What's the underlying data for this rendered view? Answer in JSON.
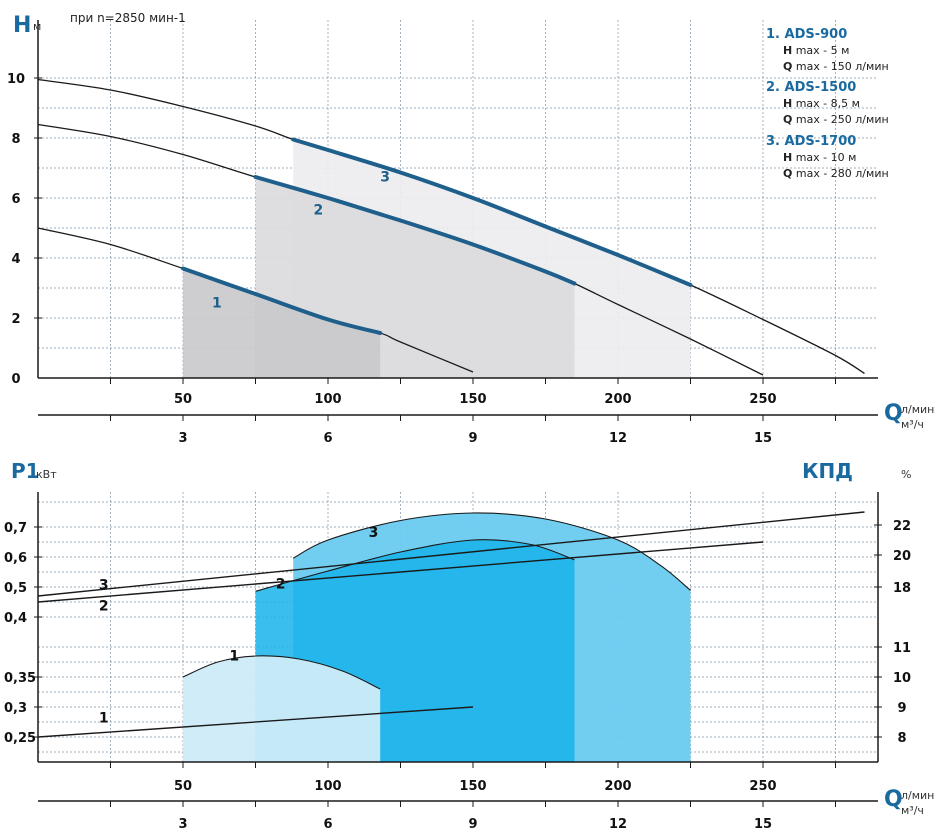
{
  "chart_data": [
    {
      "type": "line",
      "ylabel": "H",
      "yunit": "м",
      "xlabel": "Q",
      "xunit_top": "л/мин",
      "xunit_bottom": "м³/ч",
      "note": "при n=2850 мин-1",
      "xlim": [
        0,
        290
      ],
      "ylim": [
        0,
        10.4
      ],
      "y_ticks": [
        "0",
        "2",
        "4",
        "6",
        "8",
        "10"
      ],
      "x_ticks_lmin": [
        "50",
        "100",
        "150",
        "200",
        "250"
      ],
      "x_ticks_m3h": [
        "3",
        "6",
        "9",
        "12",
        "15"
      ],
      "grid": true,
      "series": [
        {
          "name": "1",
          "points": [
            [
              0,
              5.0
            ],
            [
              25,
              4.45
            ],
            [
              50,
              3.65
            ],
            [
              75,
              2.8
            ],
            [
              100,
              1.95
            ],
            [
              118,
              1.5
            ],
            [
              125,
              1.2
            ],
            [
              150,
              0.2
            ]
          ],
          "op_range": [
            50,
            118
          ]
        },
        {
          "name": "2",
          "points": [
            [
              0,
              8.45
            ],
            [
              25,
              8.05
            ],
            [
              50,
              7.45
            ],
            [
              75,
              6.7
            ],
            [
              100,
              6.0
            ],
            [
              125,
              5.25
            ],
            [
              150,
              4.45
            ],
            [
              175,
              3.55
            ],
            [
              185,
              3.15
            ],
            [
              200,
              2.45
            ],
            [
              225,
              1.3
            ],
            [
              250,
              0.1
            ]
          ],
          "op_range": [
            75,
            185
          ]
        },
        {
          "name": "3",
          "points": [
            [
              0,
              9.95
            ],
            [
              25,
              9.6
            ],
            [
              50,
              9.05
            ],
            [
              75,
              8.4
            ],
            [
              88,
              7.95
            ],
            [
              100,
              7.6
            ],
            [
              125,
              6.85
            ],
            [
              150,
              6.0
            ],
            [
              175,
              5.05
            ],
            [
              200,
              4.1
            ],
            [
              225,
              3.1
            ],
            [
              250,
              1.95
            ],
            [
              275,
              0.75
            ],
            [
              285,
              0.15
            ]
          ],
          "op_range": [
            88,
            225
          ]
        }
      ],
      "legend": [
        {
          "title": "1. ADS-900",
          "h_label": "H",
          "h_text": "max - 5 м",
          "q_label": "Q",
          "q_text": "max - 150 л/мин"
        },
        {
          "title": "2. ADS-1500",
          "h_label": "H",
          "h_text": "max - 8,5 м",
          "q_label": "Q",
          "q_text": "max - 250 л/мин"
        },
        {
          "title": "3. ADS-1700",
          "h_label": "H",
          "h_text": "max - 10 м",
          "q_label": "Q",
          "q_text": "max - 280 л/мин"
        }
      ],
      "colors": {
        "highlight": "#1f5f8b",
        "line": "#1a1a1a",
        "axis_title": "#1a6aa0"
      }
    },
    {
      "type": "line",
      "ylabel": "P1",
      "yunit": "кВт",
      "y2label": "КПД",
      "y2unit": "%",
      "xlabel": "Q",
      "xunit_top": "л/мин",
      "xunit_bottom": "м³/ч",
      "xlim": [
        0,
        290
      ],
      "y_ticks": [
        "0,25",
        "0,3",
        "0,35",
        "0,4",
        "0,5",
        "0,6",
        "0,7"
      ],
      "y2_ticks": [
        "8",
        "9",
        "10",
        "11",
        "18",
        "20",
        "22"
      ],
      "x_ticks_lmin": [
        "50",
        "100",
        "150",
        "200",
        "250"
      ],
      "x_ticks_m3h": [
        "3",
        "6",
        "9",
        "12",
        "15"
      ],
      "grid": true,
      "power_series": [
        {
          "name": "1",
          "points": [
            [
              0,
              0.25
            ],
            [
              150,
              0.3
            ]
          ]
        },
        {
          "name": "2",
          "points": [
            [
              0,
              0.45
            ],
            [
              250,
              0.65
            ]
          ]
        },
        {
          "name": "3",
          "points": [
            [
              0,
              0.47
            ],
            [
              285,
              0.75
            ]
          ]
        }
      ],
      "efficiency_series": [
        {
          "name": "1",
          "points": [
            [
              50,
              10.0
            ],
            [
              62,
              10.5
            ],
            [
              75,
              10.7
            ],
            [
              90,
              10.6
            ],
            [
              105,
              10.2
            ],
            [
              118,
              9.6
            ]
          ]
        },
        {
          "name": "2",
          "points": [
            [
              75,
              17.5
            ],
            [
              100,
              19.0
            ],
            [
              125,
              20.2
            ],
            [
              150,
              21.0
            ],
            [
              170,
              20.7
            ],
            [
              185,
              19.7
            ]
          ]
        },
        {
          "name": "3",
          "points": [
            [
              88,
              19.8
            ],
            [
              100,
              21.0
            ],
            [
              125,
              22.3
            ],
            [
              150,
              22.8
            ],
            [
              175,
              22.4
            ],
            [
              200,
              21.0
            ],
            [
              215,
              19.3
            ],
            [
              225,
              17.6
            ]
          ]
        }
      ],
      "colors": {
        "eff1": "#cdebf8",
        "eff2": "#17b3ea",
        "eff3": "#69cbf0",
        "line": "#1a1a1a",
        "axis_title": "#1a6aa0"
      }
    }
  ]
}
